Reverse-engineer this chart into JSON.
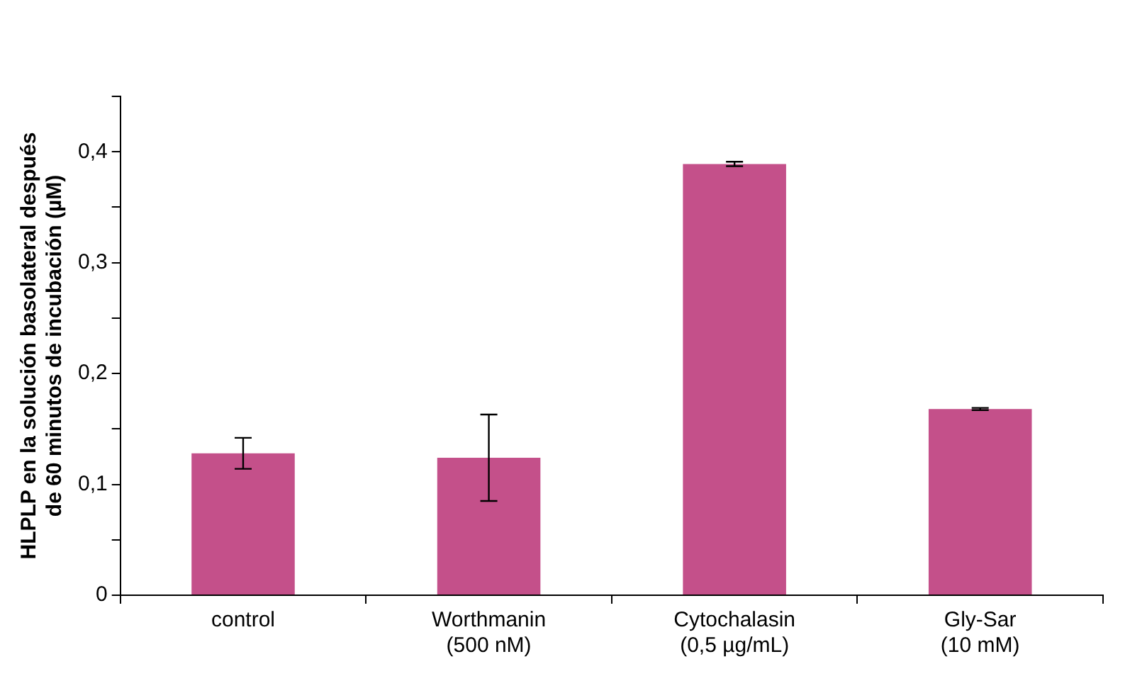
{
  "chart_data": {
    "type": "bar",
    "ylabel": "HLPLP en la solución basolateral después\nde 60 minutos de incubación (µM)",
    "categories": [
      "control",
      "Worthmanin\n(500 nM)",
      "Cytochalasin\n(0,5 µg/mL)",
      "Gly-Sar\n(10 mM)"
    ],
    "values": [
      0.128,
      0.124,
      0.389,
      0.168
    ],
    "color": "#c4508a",
    "errors": [
      0.014,
      0.039,
      0.002,
      0.001
    ],
    "ylim": [
      0,
      0.45
    ],
    "yticks": [
      0,
      {
        "value": 0.05,
        "label": null
      },
      {
        "value": 0.1,
        "label": "0,1"
      },
      {
        "value": 0.15,
        "label": null
      },
      {
        "value": 0.2,
        "label": "0,2"
      },
      {
        "value": 0.25,
        "label": null
      },
      {
        "value": 0.3,
        "label": "0,3"
      },
      {
        "value": 0.35,
        "label": null
      },
      {
        "value": 0.4,
        "label": "0,4"
      },
      {
        "value": 0.45,
        "label": null
      }
    ],
    "grid": false,
    "legend": false
  }
}
